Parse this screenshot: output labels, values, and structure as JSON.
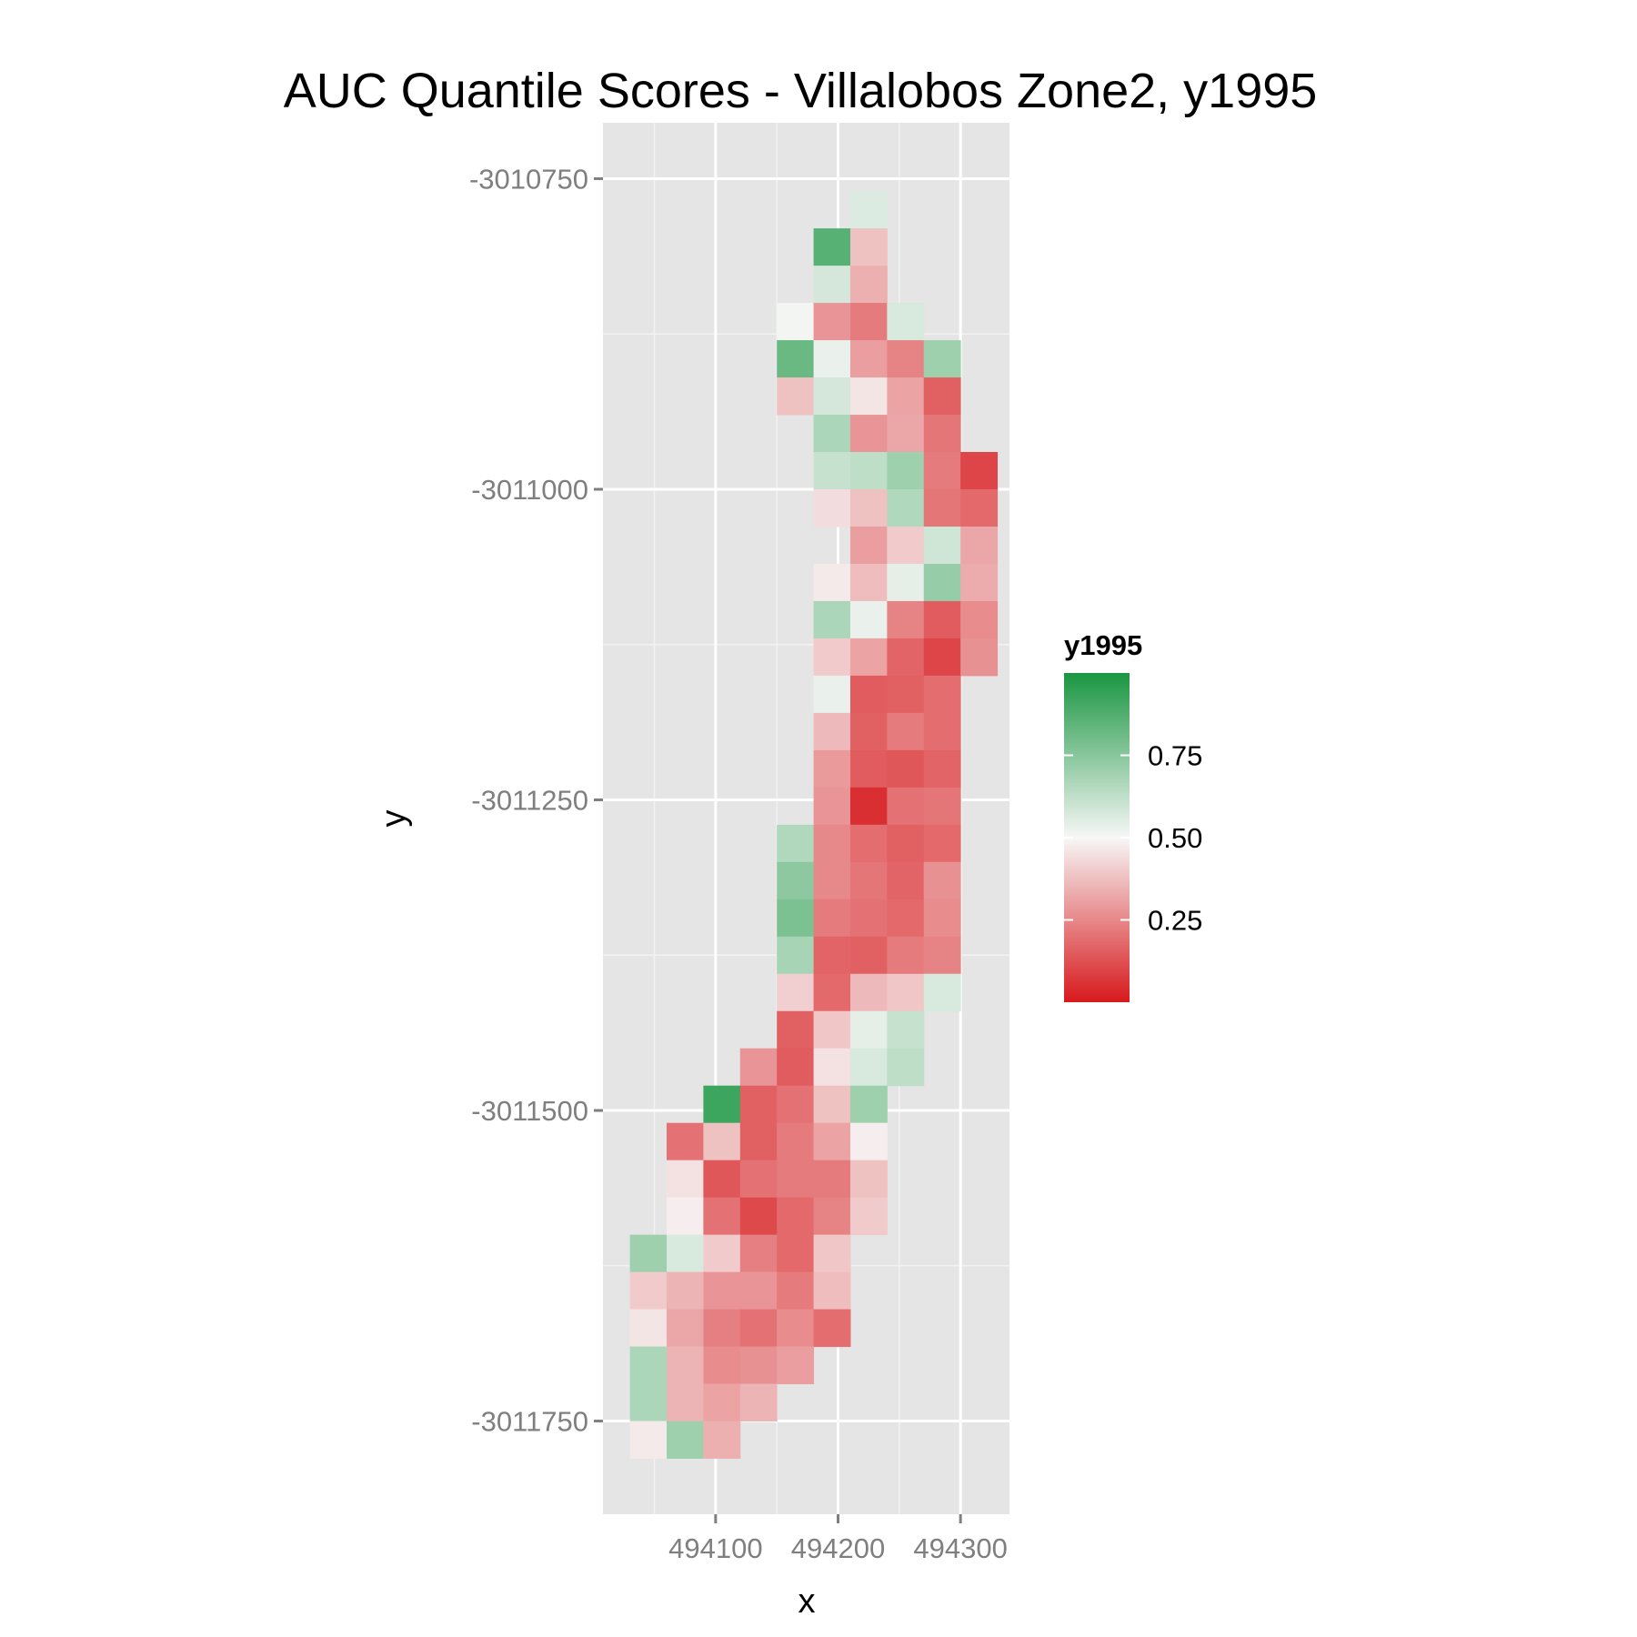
{
  "chart_data": {
    "type": "heatmap",
    "title": "AUC Quantile Scores - Villalobos Zone2, y1995",
    "xlabel": "x",
    "ylabel": "y",
    "xlim": [
      494008,
      494340
    ],
    "ylim": [
      -3011825,
      -3010705
    ],
    "x_ticks": [
      494100,
      494200,
      494300
    ],
    "x_tick_labels": [
      "494100",
      "494200",
      "494300"
    ],
    "y_ticks": [
      -3010750,
      -3011000,
      -3011250,
      -3011500,
      -3011750
    ],
    "y_tick_labels": [
      "-3010750",
      "-3011000",
      "-3011250",
      "-3011500",
      "-3011750"
    ],
    "grid": true,
    "panel_background": "#e5e5e5",
    "grid_color": "#ffffff",
    "cell_size": 30,
    "x0": 494025,
    "y0": -3010760,
    "rows": [
      "...... ......",
      ".......6.....",
      "......94.....",
      "......6......",
      ".....532.6...",
      "....8622.....",
      "....8642.7...",
      "....3652.2...",
      "......62.1...",
      "......6772...",
      "......6773.1.",
      "......53713..",
      "......5.6.23.",
      "......4352.2.",
      "......7622.2.",
      "......41.1.3.",
      "......5.2.1..",
      "......3.2.1..",
      "......30.21..",
      ".....7.2.1...",
      ".....8.2.....",
      ".....8.....3.",
      ".....7.2.....",
      ".....3.......",
      "..........  ."
    ],
    "cells": [
      {
        "x": 494225,
        "y": -3010775,
        "v": 0.56
      },
      {
        "x": 494195,
        "y": -3010805,
        "v": 0.86
      },
      {
        "x": 494225,
        "y": -3010805,
        "v": 0.38
      },
      {
        "x": 494195,
        "y": -3010835,
        "v": 0.58
      },
      {
        "x": 494225,
        "y": -3010835,
        "v": 0.34
      },
      {
        "x": 494165,
        "y": -3010865,
        "v": 0.51
      },
      {
        "x": 494195,
        "y": -3010865,
        "v": 0.28
      },
      {
        "x": 494225,
        "y": -3010865,
        "v": 0.22
      },
      {
        "x": 494255,
        "y": -3010865,
        "v": 0.57
      },
      {
        "x": 494165,
        "y": -3010895,
        "v": 0.82
      },
      {
        "x": 494195,
        "y": -3010895,
        "v": 0.53
      },
      {
        "x": 494225,
        "y": -3010895,
        "v": 0.3
      },
      {
        "x": 494255,
        "y": -3010895,
        "v": 0.24
      },
      {
        "x": 494285,
        "y": -3010895,
        "v": 0.7
      },
      {
        "x": 494165,
        "y": -3010925,
        "v": 0.38
      },
      {
        "x": 494195,
        "y": -3010925,
        "v": 0.58
      },
      {
        "x": 494225,
        "y": -3010925,
        "v": 0.46
      },
      {
        "x": 494255,
        "y": -3010925,
        "v": 0.31
      },
      {
        "x": 494285,
        "y": -3010925,
        "v": 0.16
      },
      {
        "x": 494195,
        "y": -3010955,
        "v": 0.67
      },
      {
        "x": 494225,
        "y": -3010955,
        "v": 0.28
      },
      {
        "x": 494255,
        "y": -3010955,
        "v": 0.32
      },
      {
        "x": 494285,
        "y": -3010955,
        "v": 0.21
      },
      {
        "x": 494195,
        "y": -3010985,
        "v": 0.61
      },
      {
        "x": 494225,
        "y": -3010985,
        "v": 0.63
      },
      {
        "x": 494255,
        "y": -3010985,
        "v": 0.7
      },
      {
        "x": 494285,
        "y": -3010985,
        "v": 0.22
      },
      {
        "x": 494315,
        "y": -3010985,
        "v": 0.1
      },
      {
        "x": 494195,
        "y": -3011015,
        "v": 0.44
      },
      {
        "x": 494225,
        "y": -3011015,
        "v": 0.38
      },
      {
        "x": 494255,
        "y": -3011015,
        "v": 0.66
      },
      {
        "x": 494285,
        "y": -3011015,
        "v": 0.21
      },
      {
        "x": 494315,
        "y": -3011015,
        "v": 0.18
      },
      {
        "x": 494225,
        "y": -3011045,
        "v": 0.3
      },
      {
        "x": 494255,
        "y": -3011045,
        "v": 0.4
      },
      {
        "x": 494285,
        "y": -3011045,
        "v": 0.59
      },
      {
        "x": 494315,
        "y": -3011045,
        "v": 0.32
      },
      {
        "x": 494195,
        "y": -3011075,
        "v": 0.47
      },
      {
        "x": 494225,
        "y": -3011075,
        "v": 0.37
      },
      {
        "x": 494255,
        "y": -3011075,
        "v": 0.54
      },
      {
        "x": 494285,
        "y": -3011075,
        "v": 0.72
      },
      {
        "x": 494315,
        "y": -3011075,
        "v": 0.33
      },
      {
        "x": 494195,
        "y": -3011105,
        "v": 0.67
      },
      {
        "x": 494225,
        "y": -3011105,
        "v": 0.53
      },
      {
        "x": 494255,
        "y": -3011105,
        "v": 0.24
      },
      {
        "x": 494285,
        "y": -3011105,
        "v": 0.15
      },
      {
        "x": 494315,
        "y": -3011105,
        "v": 0.26
      },
      {
        "x": 494195,
        "y": -3011135,
        "v": 0.4
      },
      {
        "x": 494225,
        "y": -3011135,
        "v": 0.31
      },
      {
        "x": 494255,
        "y": -3011135,
        "v": 0.17
      },
      {
        "x": 494285,
        "y": -3011135,
        "v": 0.1
      },
      {
        "x": 494315,
        "y": -3011135,
        "v": 0.27
      },
      {
        "x": 494195,
        "y": -3011165,
        "v": 0.53
      },
      {
        "x": 494225,
        "y": -3011165,
        "v": 0.15
      },
      {
        "x": 494255,
        "y": -3011165,
        "v": 0.16
      },
      {
        "x": 494285,
        "y": -3011165,
        "v": 0.19
      },
      {
        "x": 494195,
        "y": -3011195,
        "v": 0.36
      },
      {
        "x": 494225,
        "y": -3011195,
        "v": 0.16
      },
      {
        "x": 494255,
        "y": -3011195,
        "v": 0.22
      },
      {
        "x": 494285,
        "y": -3011195,
        "v": 0.19
      },
      {
        "x": 494195,
        "y": -3011225,
        "v": 0.29
      },
      {
        "x": 494225,
        "y": -3011225,
        "v": 0.15
      },
      {
        "x": 494255,
        "y": -3011225,
        "v": 0.14
      },
      {
        "x": 494285,
        "y": -3011225,
        "v": 0.17
      },
      {
        "x": 494195,
        "y": -3011255,
        "v": 0.28
      },
      {
        "x": 494225,
        "y": -3011255,
        "v": 0.05
      },
      {
        "x": 494255,
        "y": -3011255,
        "v": 0.2
      },
      {
        "x": 494285,
        "y": -3011255,
        "v": 0.21
      },
      {
        "x": 494165,
        "y": -3011285,
        "v": 0.66
      },
      {
        "x": 494195,
        "y": -3011285,
        "v": 0.25
      },
      {
        "x": 494225,
        "y": -3011285,
        "v": 0.19
      },
      {
        "x": 494255,
        "y": -3011285,
        "v": 0.16
      },
      {
        "x": 494285,
        "y": -3011285,
        "v": 0.18
      },
      {
        "x": 494165,
        "y": -3011315,
        "v": 0.74
      },
      {
        "x": 494195,
        "y": -3011315,
        "v": 0.25
      },
      {
        "x": 494225,
        "y": -3011315,
        "v": 0.21
      },
      {
        "x": 494255,
        "y": -3011315,
        "v": 0.17
      },
      {
        "x": 494285,
        "y": -3011315,
        "v": 0.27
      },
      {
        "x": 494165,
        "y": -3011345,
        "v": 0.78
      },
      {
        "x": 494195,
        "y": -3011345,
        "v": 0.22
      },
      {
        "x": 494225,
        "y": -3011345,
        "v": 0.2
      },
      {
        "x": 494255,
        "y": -3011345,
        "v": 0.18
      },
      {
        "x": 494285,
        "y": -3011345,
        "v": 0.26
      },
      {
        "x": 494165,
        "y": -3011375,
        "v": 0.68
      },
      {
        "x": 494195,
        "y": -3011375,
        "v": 0.17
      },
      {
        "x": 494225,
        "y": -3011375,
        "v": 0.16
      },
      {
        "x": 494255,
        "y": -3011375,
        "v": 0.22
      },
      {
        "x": 494285,
        "y": -3011375,
        "v": 0.24
      },
      {
        "x": 494165,
        "y": -3011405,
        "v": 0.41
      },
      {
        "x": 494195,
        "y": -3011405,
        "v": 0.18
      },
      {
        "x": 494225,
        "y": -3011405,
        "v": 0.36
      },
      {
        "x": 494255,
        "y": -3011405,
        "v": 0.39
      },
      {
        "x": 494285,
        "y": -3011405,
        "v": 0.57
      },
      {
        "x": 494165,
        "y": -3011435,
        "v": 0.16
      },
      {
        "x": 494195,
        "y": -3011435,
        "v": 0.39
      },
      {
        "x": 494225,
        "y": -3011435,
        "v": 0.54
      },
      {
        "x": 494255,
        "y": -3011435,
        "v": 0.61
      },
      {
        "x": 494135,
        "y": -3011465,
        "v": 0.28
      },
      {
        "x": 494165,
        "y": -3011465,
        "v": 0.15
      },
      {
        "x": 494195,
        "y": -3011465,
        "v": 0.45
      },
      {
        "x": 494225,
        "y": -3011465,
        "v": 0.57
      },
      {
        "x": 494255,
        "y": -3011465,
        "v": 0.63
      },
      {
        "x": 494105,
        "y": -3011495,
        "v": 0.92
      },
      {
        "x": 494135,
        "y": -3011495,
        "v": 0.16
      },
      {
        "x": 494165,
        "y": -3011495,
        "v": 0.2
      },
      {
        "x": 494195,
        "y": -3011495,
        "v": 0.38
      },
      {
        "x": 494225,
        "y": -3011495,
        "v": 0.7
      },
      {
        "x": 494075,
        "y": -3011525,
        "v": 0.2
      },
      {
        "x": 494105,
        "y": -3011525,
        "v": 0.38
      },
      {
        "x": 494135,
        "y": -3011525,
        "v": 0.16
      },
      {
        "x": 494165,
        "y": -3011525,
        "v": 0.22
      },
      {
        "x": 494195,
        "y": -3011525,
        "v": 0.31
      },
      {
        "x": 494225,
        "y": -3011525,
        "v": 0.48
      },
      {
        "x": 494075,
        "y": -3011555,
        "v": 0.45
      },
      {
        "x": 494105,
        "y": -3011555,
        "v": 0.14
      },
      {
        "x": 494135,
        "y": -3011555,
        "v": 0.2
      },
      {
        "x": 494165,
        "y": -3011555,
        "v": 0.22
      },
      {
        "x": 494195,
        "y": -3011555,
        "v": 0.22
      },
      {
        "x": 494225,
        "y": -3011555,
        "v": 0.38
      },
      {
        "x": 494075,
        "y": -3011585,
        "v": 0.48
      },
      {
        "x": 494105,
        "y": -3011585,
        "v": 0.2
      },
      {
        "x": 494135,
        "y": -3011585,
        "v": 0.11
      },
      {
        "x": 494165,
        "y": -3011585,
        "v": 0.18
      },
      {
        "x": 494195,
        "y": -3011585,
        "v": 0.24
      },
      {
        "x": 494225,
        "y": -3011585,
        "v": 0.4
      },
      {
        "x": 494045,
        "y": -3011615,
        "v": 0.7
      },
      {
        "x": 494075,
        "y": -3011615,
        "v": 0.57
      },
      {
        "x": 494105,
        "y": -3011615,
        "v": 0.4
      },
      {
        "x": 494135,
        "y": -3011615,
        "v": 0.23
      },
      {
        "x": 494165,
        "y": -3011615,
        "v": 0.18
      },
      {
        "x": 494195,
        "y": -3011615,
        "v": 0.39
      },
      {
        "x": 494045,
        "y": -3011645,
        "v": 0.4
      },
      {
        "x": 494075,
        "y": -3011645,
        "v": 0.35
      },
      {
        "x": 494105,
        "y": -3011645,
        "v": 0.28
      },
      {
        "x": 494135,
        "y": -3011645,
        "v": 0.28
      },
      {
        "x": 494165,
        "y": -3011645,
        "v": 0.22
      },
      {
        "x": 494195,
        "y": -3011645,
        "v": 0.37
      },
      {
        "x": 494045,
        "y": -3011675,
        "v": 0.46
      },
      {
        "x": 494075,
        "y": -3011675,
        "v": 0.32
      },
      {
        "x": 494105,
        "y": -3011675,
        "v": 0.23
      },
      {
        "x": 494135,
        "y": -3011675,
        "v": 0.2
      },
      {
        "x": 494165,
        "y": -3011675,
        "v": 0.26
      },
      {
        "x": 494195,
        "y": -3011675,
        "v": 0.19
      },
      {
        "x": 494045,
        "y": -3011705,
        "v": 0.67
      },
      {
        "x": 494075,
        "y": -3011705,
        "v": 0.35
      },
      {
        "x": 494105,
        "y": -3011705,
        "v": 0.26
      },
      {
        "x": 494135,
        "y": -3011705,
        "v": 0.27
      },
      {
        "x": 494165,
        "y": -3011705,
        "v": 0.3
      },
      {
        "x": 494045,
        "y": -3011735,
        "v": 0.67
      },
      {
        "x": 494075,
        "y": -3011735,
        "v": 0.35
      },
      {
        "x": 494105,
        "y": -3011735,
        "v": 0.31
      },
      {
        "x": 494135,
        "y": -3011735,
        "v": 0.35
      },
      {
        "x": 494045,
        "y": -3011765,
        "v": 0.47
      },
      {
        "x": 494075,
        "y": -3011765,
        "v": 0.7
      },
      {
        "x": 494105,
        "y": -3011765,
        "v": 0.34
      }
    ],
    "legend": {
      "title": "y1995",
      "position": "right",
      "breaks": [
        0.75,
        0.5,
        0.25
      ],
      "labels": [
        "0.75",
        "0.50",
        "0.25"
      ],
      "range": [
        0,
        1
      ],
      "colors": {
        "low": "#d7191c",
        "mid": "#f7f7f7",
        "high": "#1a9641"
      }
    }
  }
}
